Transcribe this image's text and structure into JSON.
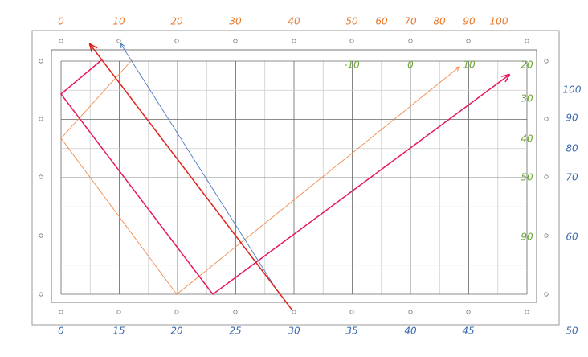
{
  "top_labels": [
    "0",
    "10",
    "20",
    "30",
    "40",
    "50",
    "60",
    "70",
    "80",
    "90",
    "100"
  ],
  "bottom_labels": [
    "0",
    "15",
    "20",
    "25",
    "30",
    "35",
    "40",
    "45",
    "50"
  ],
  "right_labels": [
    "100",
    "90",
    "80",
    "70",
    "60"
  ],
  "inner_labels": [
    "-10",
    "0",
    "10",
    "20",
    "30",
    "40",
    "50",
    "90"
  ]
}
